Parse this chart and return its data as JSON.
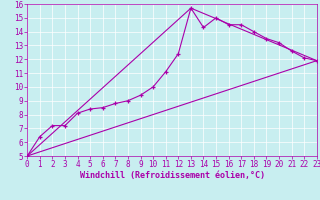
{
  "xlabel": "Windchill (Refroidissement éolien,°C)",
  "bg_color": "#c8eef0",
  "grid_color": "#ffffff",
  "line_color": "#aa00aa",
  "xlim": [
    0,
    23
  ],
  "ylim": [
    5,
    16
  ],
  "xticks": [
    0,
    1,
    2,
    3,
    4,
    5,
    6,
    7,
    8,
    9,
    10,
    11,
    12,
    13,
    14,
    15,
    16,
    17,
    18,
    19,
    20,
    21,
    22,
    23
  ],
  "yticks": [
    5,
    6,
    7,
    8,
    9,
    10,
    11,
    12,
    13,
    14,
    15,
    16
  ],
  "line1_x": [
    0,
    1,
    2,
    3,
    4,
    5,
    6,
    7,
    8,
    9,
    10,
    11,
    12,
    13,
    14,
    15,
    16,
    17,
    18,
    19,
    20,
    21,
    22,
    23
  ],
  "line1_y": [
    5.0,
    6.4,
    7.2,
    7.2,
    8.1,
    8.4,
    8.5,
    8.8,
    9.0,
    9.4,
    10.0,
    11.1,
    12.4,
    15.7,
    14.3,
    15.0,
    14.5,
    14.5,
    14.0,
    13.5,
    13.2,
    12.6,
    12.1,
    11.9
  ],
  "line2_x": [
    0,
    23
  ],
  "line2_y": [
    5.0,
    11.9
  ],
  "line3_x": [
    0,
    13,
    23
  ],
  "line3_y": [
    5.0,
    15.7,
    11.9
  ],
  "tick_fontsize": 5.5,
  "xlabel_fontsize": 6.0
}
